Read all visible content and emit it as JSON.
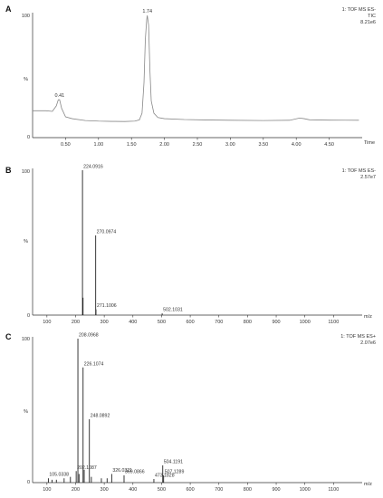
{
  "chart_data": [
    {
      "panel": "A",
      "type": "line",
      "instrument": [
        "1: TOF MS ES-",
        "TIC",
        "8.21e6"
      ],
      "instrument_color": "#cc2222",
      "y_axis": {
        "top_label": "100",
        "side_label": "%",
        "bottom_label": "0"
      },
      "xlabel": "Time",
      "xlim": [
        0.0,
        5.0
      ],
      "xticks": [
        "0.50",
        "1.00",
        "1.50",
        "2.00",
        "2.50",
        "3.00",
        "3.50",
        "4.00",
        "4.50"
      ],
      "ylim": [
        0,
        100
      ],
      "series": [
        {
          "color": "#888888",
          "x": [
            0.0,
            0.2,
            0.3,
            0.36,
            0.39,
            0.41,
            0.44,
            0.5,
            0.6,
            0.8,
            1.0,
            1.2,
            1.4,
            1.55,
            1.62,
            1.66,
            1.69,
            1.71,
            1.73,
            1.74,
            1.76,
            1.78,
            1.8,
            1.84,
            1.9,
            2.0,
            2.3,
            2.6,
            3.0,
            3.5,
            3.9,
            4.05,
            4.12,
            4.2,
            4.5,
            4.95
          ],
          "y": [
            22,
            22,
            21.5,
            26,
            31,
            31,
            24,
            17,
            15.5,
            14,
            13.5,
            13.3,
            13.2,
            13.5,
            14.5,
            20,
            45,
            80,
            96,
            100,
            92,
            55,
            30,
            20,
            16.5,
            15.5,
            14.8,
            14.5,
            14.2,
            14.0,
            14.2,
            16,
            15.5,
            14.6,
            14.3,
            14.2
          ]
        }
      ],
      "annotations": [
        {
          "x": 0.41,
          "y": 31,
          "text": "0.41"
        },
        {
          "x": 1.74,
          "y": 100,
          "text": "1.74"
        }
      ]
    },
    {
      "panel": "B",
      "type": "bar",
      "instrument": [
        "1: TOF MS ES-",
        "2.57e7"
      ],
      "instrument_color": "#993399",
      "y_axis": {
        "top_label": "100",
        "side_label": "%",
        "bottom_label": "0"
      },
      "xlabel": "m/z",
      "xlim": [
        50,
        1200
      ],
      "xticks": [
        "100",
        "200",
        "300",
        "400",
        "500",
        "600",
        "700",
        "800",
        "900",
        "1000",
        "1100"
      ],
      "ylim": [
        0,
        100
      ],
      "peaks": {
        "x": [
          224.0916,
          226.0,
          270.0974,
          271.1006,
          502.1031
        ],
        "y": [
          100,
          12,
          55,
          4,
          1.2
        ]
      },
      "labels": [
        {
          "x": 224.0916,
          "y": 100,
          "text": "224.0916"
        },
        {
          "x": 270.0974,
          "y": 55,
          "text": "270.0974"
        },
        {
          "x": 271.1006,
          "y": 4,
          "text": "271.1006"
        },
        {
          "x": 502.1031,
          "y": 1.2,
          "text": "502.1031"
        }
      ]
    },
    {
      "panel": "C",
      "type": "bar",
      "instrument": [
        "1: TOF MS ES+",
        "2.07e6"
      ],
      "instrument_color": "#22aa22",
      "y_axis": {
        "top_label": "100",
        "side_label": "%",
        "bottom_label": "0"
      },
      "xlabel": "m/z",
      "xlim": [
        50,
        1200
      ],
      "xticks": [
        "100",
        "200",
        "300",
        "400",
        "500",
        "600",
        "700",
        "800",
        "900",
        "1000",
        "1100"
      ],
      "ylim": [
        0,
        100
      ],
      "peaks": {
        "x": [
          105.0338,
          118,
          133,
          160,
          182,
          202.1087,
          208.0968,
          212,
          226.1074,
          230,
          248.0892,
          255,
          290,
          310,
          326.0321,
          369.0866,
          473.1828,
          504.1191,
          507.1289
        ],
        "y": [
          3,
          2,
          2,
          3,
          4,
          8,
          100,
          6,
          80,
          9,
          44,
          4,
          3,
          3,
          6,
          5,
          2.5,
          12,
          5
        ]
      },
      "labels": [
        {
          "x": 105.0338,
          "y": 3,
          "text": "105.0338"
        },
        {
          "x": 202.1087,
          "y": 8,
          "text": "202.1087"
        },
        {
          "x": 208.0968,
          "y": 100,
          "text": "208.0968"
        },
        {
          "x": 226.1074,
          "y": 80,
          "text": "226.1074"
        },
        {
          "x": 248.0892,
          "y": 44,
          "text": "248.0892"
        },
        {
          "x": 326.0321,
          "y": 6,
          "text": "326.0321"
        },
        {
          "x": 369.0866,
          "y": 5,
          "text": "369.0866"
        },
        {
          "x": 473.1828,
          "y": 2.5,
          "text": "473.1828"
        },
        {
          "x": 504.1191,
          "y": 12,
          "text": "504.1191"
        },
        {
          "x": 507.1289,
          "y": 5,
          "text": "507.1289"
        }
      ]
    }
  ]
}
